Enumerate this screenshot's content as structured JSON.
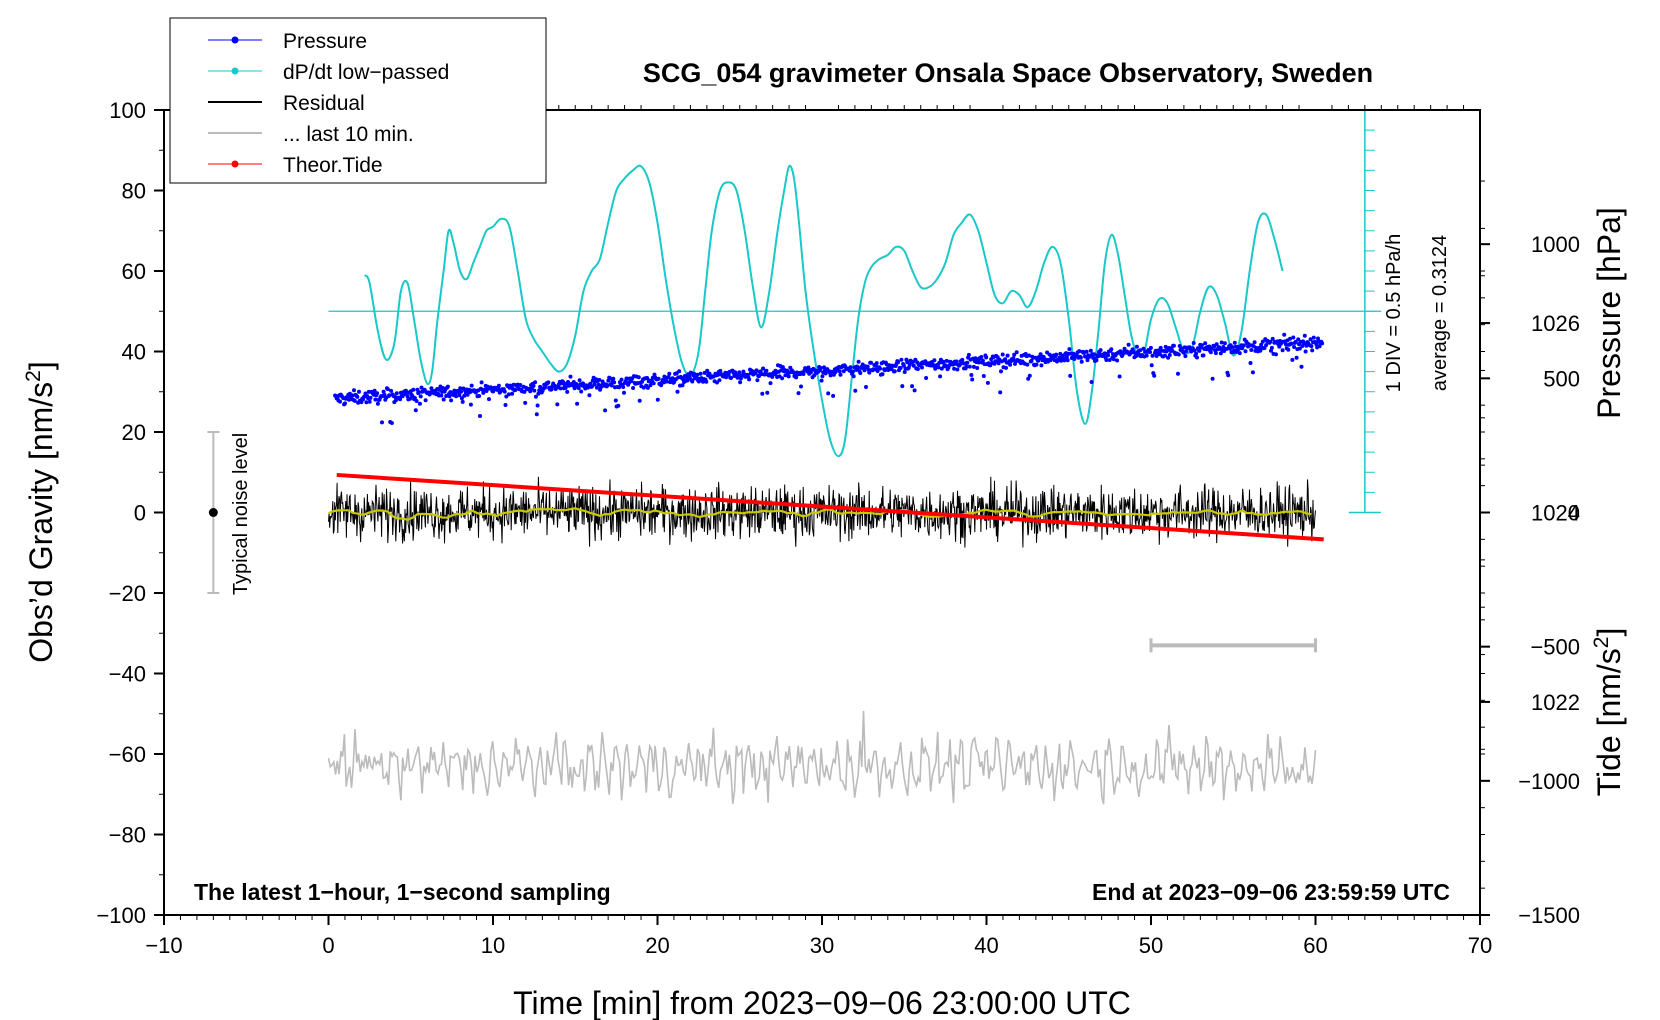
{
  "chart_data": {
    "type": "line",
    "title": "SCG_054 gravimeter Onsala Space Observatory, Sweden",
    "xlabel": "Time [min] from 2023−09−06 23:00:00 UTC",
    "ylabel": "Obs’d Gravity [nm/s2]",
    "ylabel_main": "Obs’d Gravity [nm/s",
    "ylabel_sup": "2",
    "ylabel_tail": "]",
    "y2label": "Pressure [hPa]",
    "y3label_main": "Tide [nm/s",
    "y3label_sup": "2",
    "y3label_tail": "]",
    "xlim": [
      -10,
      70
    ],
    "ylim": [
      -100,
      100
    ],
    "pressure_ylim": [
      1019.75,
      1028.25
    ],
    "tide_ylim": [
      -1500,
      1500
    ],
    "grid": false,
    "legend_position": "top-left",
    "x_ticks": [
      -10,
      0,
      10,
      20,
      30,
      40,
      50,
      60,
      70
    ],
    "x_tick_labels": [
      "−10",
      "0",
      "10",
      "20",
      "30",
      "40",
      "50",
      "60",
      "70"
    ],
    "y_ticks": [
      100,
      80,
      60,
      40,
      20,
      0,
      -20,
      -40,
      -60,
      -80,
      -100
    ],
    "y_tick_labels": [
      "100",
      "80",
      "60",
      "40",
      "20",
      "0",
      "−20",
      "−40",
      "−60",
      "−80",
      "−100"
    ],
    "pressure_ticks": [
      1026,
      1024,
      1022
    ],
    "pressure_tick_labels": [
      "1026",
      "1024",
      "1022"
    ],
    "tide_ticks": [
      1000,
      500,
      0,
      -500,
      -1000,
      -1500
    ],
    "tide_tick_labels": [
      "1000",
      "500",
      "0",
      "−500",
      "−1000",
      "−1500"
    ],
    "legend": [
      {
        "label": "Pressure",
        "color": "#0000ff",
        "marker": true
      },
      {
        "label": "dP/dt low−passed",
        "color": "#19c8c8",
        "marker": true
      },
      {
        "label": "Residual",
        "color": "#000000",
        "marker": false
      },
      {
        "label": "... last 10 min.",
        "color": "#bbbbbb",
        "marker": false
      },
      {
        "label": "Theor.Tide",
        "color": "#ff0000",
        "marker": true
      }
    ],
    "pressure_start_hpa": 1025.2,
    "pressure_end_hpa": 1025.8,
    "dpdt_reference_gravity": 50,
    "dpdt_series": {
      "x": [
        2.2,
        2.5,
        3.0,
        3.5,
        4.0,
        4.4,
        4.8,
        5.2,
        5.6,
        6.0,
        6.3,
        6.6,
        7.0,
        7.3,
        7.6,
        8.0,
        8.4,
        8.8,
        9.2,
        9.6,
        10.0,
        10.5,
        11.0,
        11.5,
        12.0,
        12.5,
        13.0,
        13.5,
        14.0,
        14.5,
        15.0,
        15.5,
        16.0,
        16.5,
        17.0,
        17.5,
        18.0,
        18.5,
        19.0,
        19.5,
        20.0,
        20.5,
        21.0,
        21.5,
        22.0,
        22.5,
        22.9,
        23.3,
        23.8,
        24.3,
        24.8,
        25.3,
        25.8,
        26.3,
        26.8,
        27.3,
        27.7,
        28.0,
        28.3,
        28.6,
        29.0,
        29.5,
        30.0,
        30.5,
        31.0,
        31.4,
        31.8,
        32.2,
        32.6,
        33.0,
        33.5,
        34.0,
        34.5,
        35.0,
        35.5,
        36.0,
        36.5,
        37.0,
        37.5,
        38.0,
        38.5,
        39.0,
        39.5,
        40.0,
        40.5,
        41.0,
        41.5,
        42.0,
        42.5,
        43.0,
        43.5,
        44.0,
        44.5,
        45.0,
        45.5,
        46.0,
        46.4,
        46.8,
        47.2,
        47.6,
        48.0,
        48.4,
        48.8,
        49.2,
        49.6,
        50.0,
        50.5,
        51.0,
        51.5,
        52.0,
        52.5,
        53.0,
        53.5,
        54.0,
        54.5,
        55.0,
        55.5,
        56.0,
        56.5,
        57.0,
        57.5,
        58.0
      ],
      "y": [
        59,
        57,
        45,
        38,
        42,
        55,
        57,
        48,
        38,
        32,
        35,
        47,
        60,
        70,
        67,
        60,
        58,
        62,
        66,
        70,
        71,
        73,
        71,
        60,
        48,
        43,
        40,
        37,
        35,
        37,
        44,
        55,
        60,
        63,
        72,
        80,
        83,
        85,
        86,
        82,
        72,
        58,
        46,
        37,
        34,
        40,
        55,
        70,
        80,
        82,
        80,
        70,
        56,
        46,
        55,
        70,
        80,
        86,
        83,
        72,
        55,
        40,
        28,
        18,
        14,
        18,
        33,
        48,
        57,
        61,
        63,
        64,
        66,
        65,
        60,
        56,
        56,
        58,
        62,
        69,
        72,
        74,
        70,
        62,
        54,
        52,
        55,
        54,
        51,
        55,
        62,
        66,
        62,
        48,
        30,
        22,
        30,
        45,
        62,
        69,
        64,
        54,
        44,
        39,
        40,
        48,
        53,
        52,
        46,
        40,
        41,
        50,
        56,
        54,
        47,
        39,
        45,
        60,
        72,
        74,
        68,
        60
      ]
    },
    "residual_series": {
      "x_start": 0,
      "x_end": 60,
      "samples": 3600,
      "noise_amplitude_nms2": 6
    },
    "smoothed_residual": {
      "x_start": 0,
      "x_end": 60,
      "color": "#c8c800"
    },
    "last10_series": {
      "x_start": 0,
      "x_end": 60,
      "offset_gravity": -63,
      "amplitude_nms2": 5,
      "spike_min": 32.5
    },
    "tide_series": {
      "x": [
        0.5,
        60.5
      ],
      "y": [
        140,
        -100
      ]
    },
    "noise_bar": {
      "x": -7,
      "y_low": -20,
      "y_high": 20,
      "center": 0,
      "label": "Typical noise level"
    },
    "dpdt_scale": {
      "x": 63,
      "y_low": 0,
      "y_high": 100,
      "divisions": 20,
      "label_div": "1 DIV = 0.5 hPa/h",
      "label_avg": "average = 0.3124"
    },
    "time_bar": {
      "x_start": 50,
      "x_end": 60,
      "y_gravity": -33
    },
    "footer_left": "The latest 1−hour, 1−second sampling",
    "footer_right": "End at 2023−09−06 23:59:59 UTC"
  }
}
